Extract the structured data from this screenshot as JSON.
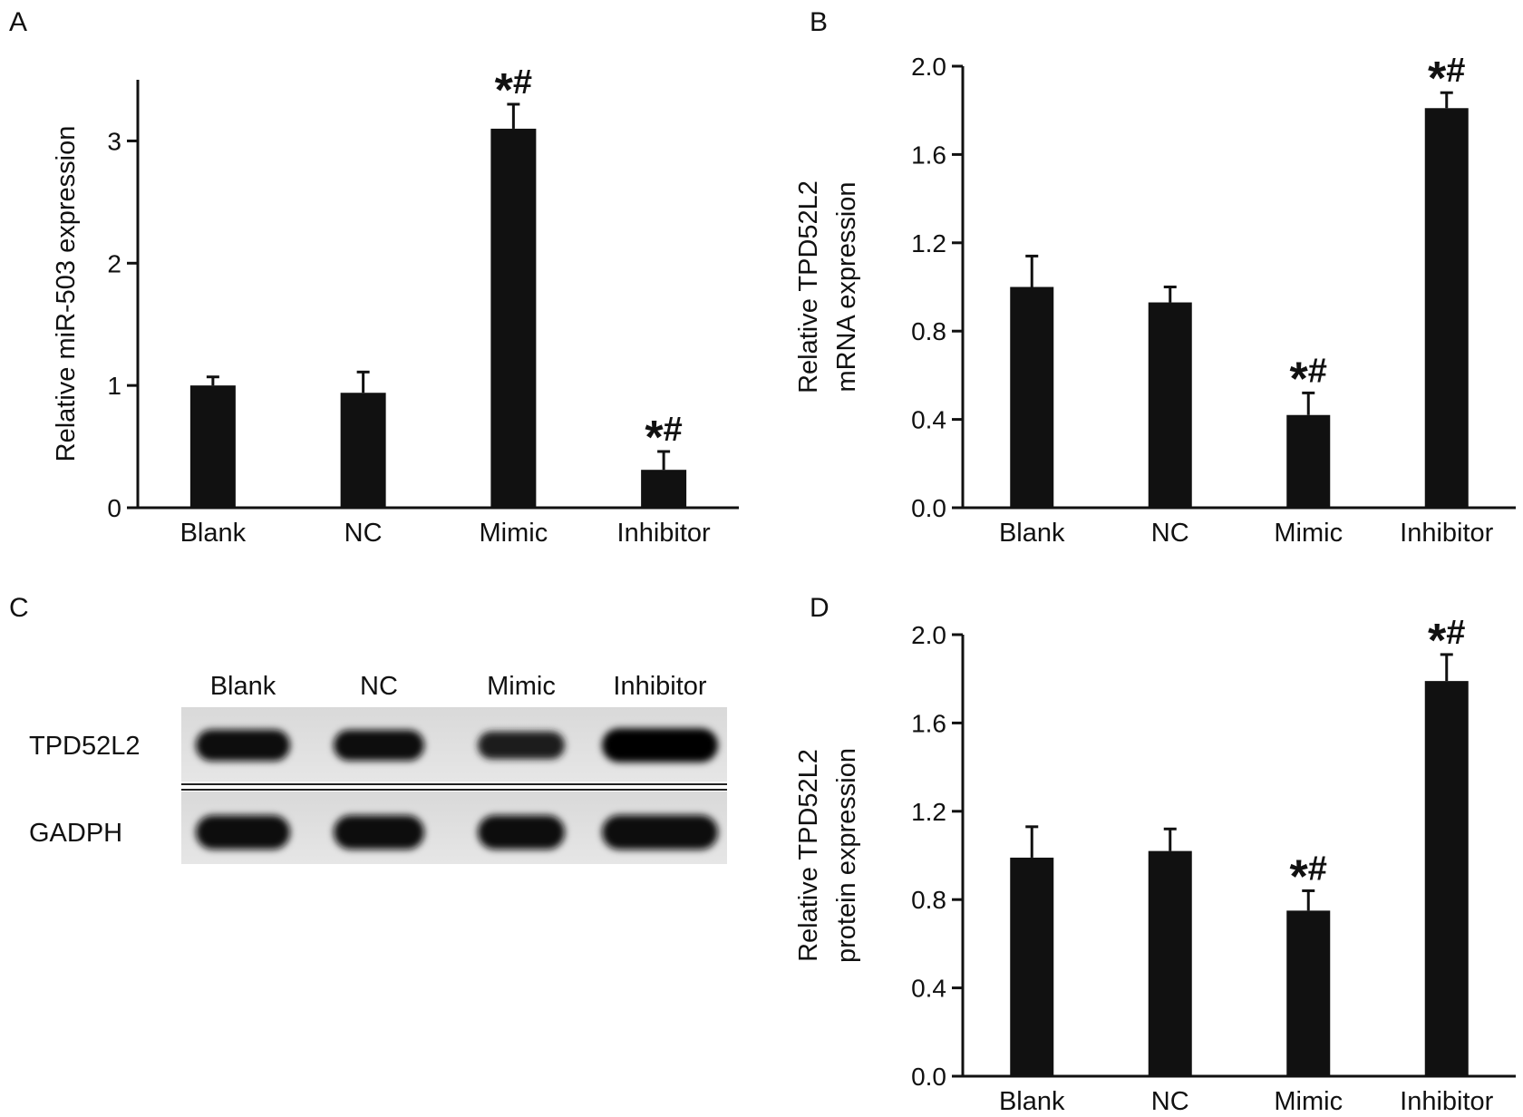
{
  "panels": {
    "A": "A",
    "B": "B",
    "C": "C",
    "D": "D"
  },
  "chart_data": [
    {
      "panel": "A",
      "type": "bar",
      "categories": [
        "Blank",
        "NC",
        "Mimic",
        "Inhibitor"
      ],
      "values": [
        1.0,
        0.94,
        3.1,
        0.31
      ],
      "errors": [
        0.07,
        0.17,
        0.2,
        0.15
      ],
      "annotations": [
        "",
        "",
        "*#",
        "*#"
      ],
      "ylabel_lines": [
        "Relative miR-503 expression"
      ],
      "ylim": [
        0,
        3.5
      ],
      "yticks": [
        0,
        1,
        2,
        3
      ],
      "ytick_labels": [
        "0",
        "1",
        "2",
        "3"
      ],
      "bar_color": "#111111"
    },
    {
      "panel": "B",
      "type": "bar",
      "categories": [
        "Blank",
        "NC",
        "Mimic",
        "Inhibitor"
      ],
      "values": [
        1.0,
        0.93,
        0.42,
        1.81
      ],
      "errors": [
        0.14,
        0.07,
        0.1,
        0.07
      ],
      "annotations": [
        "",
        "",
        "*#",
        "*#"
      ],
      "ylabel_lines": [
        "Relative TPD52L2",
        "mRNA expression"
      ],
      "ylim": [
        0,
        2.0
      ],
      "yticks": [
        0,
        0.4,
        0.8,
        1.2,
        1.6,
        2.0
      ],
      "ytick_labels": [
        "0.0",
        "0.4",
        "0.8",
        "1.2",
        "1.6",
        "2.0"
      ],
      "bar_color": "#111111"
    },
    {
      "panel": "D",
      "type": "bar",
      "categories": [
        "Blank",
        "NC",
        "Mimic",
        "Inhibitor"
      ],
      "values": [
        0.99,
        1.02,
        0.75,
        1.79
      ],
      "errors": [
        0.14,
        0.1,
        0.09,
        0.12
      ],
      "annotations": [
        "",
        "",
        "*#",
        "*#"
      ],
      "ylabel_lines": [
        "Relative TPD52L2",
        "protein expression"
      ],
      "ylim": [
        0,
        2.0
      ],
      "yticks": [
        0,
        0.4,
        0.8,
        1.2,
        1.6,
        2.0
      ],
      "ytick_labels": [
        "0.0",
        "0.4",
        "0.8",
        "1.2",
        "1.6",
        "2.0"
      ],
      "bar_color": "#111111"
    }
  ],
  "blot": {
    "lanes": [
      "Blank",
      "NC",
      "Mimic",
      "Inhibitor"
    ],
    "rows": [
      {
        "label": "TPD52L2",
        "intensities": [
          0.85,
          0.8,
          0.6,
          1.0
        ]
      },
      {
        "label": "GADPH",
        "intensities": [
          0.9,
          0.9,
          0.9,
          0.92
        ]
      }
    ]
  }
}
